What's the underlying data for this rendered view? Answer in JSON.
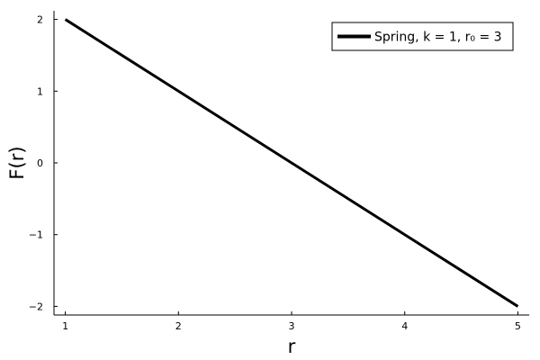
{
  "chart_data": {
    "type": "line",
    "title": "",
    "xlabel": "r",
    "ylabel": "F(r)",
    "xlim": [
      0.9,
      5.1
    ],
    "ylim": [
      -2.12,
      2.12
    ],
    "xticks": [
      1,
      2,
      3,
      4,
      5
    ],
    "yticks": [
      -2,
      -1,
      0,
      1,
      2
    ],
    "xtick_labels": [
      "1",
      "2",
      "3",
      "4",
      "5"
    ],
    "ytick_labels": [
      "−2",
      "−1",
      "0",
      "1",
      "2"
    ],
    "grid": false,
    "legend_position": "top-right",
    "series": [
      {
        "name": "Spring, k = 1, r₀ = 3",
        "color": "#000000",
        "x": [
          1,
          2,
          3,
          4,
          5
        ],
        "y": [
          2,
          1,
          0,
          -1,
          -2
        ]
      }
    ]
  }
}
